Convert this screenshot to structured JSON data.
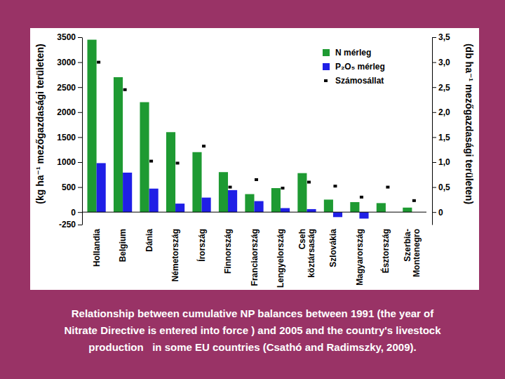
{
  "chart_data": {
    "type": "bar",
    "caption": [
      "Relationship between cumulative NP balances between 1991 (the year of",
      "Nitrate Directive is entered into force ) and 2005 and the country's livestock",
      "production   in some EU countries (Csathó and Radimszky, 2009)."
    ],
    "y_label": "(kg ha⁻¹ mezőgazdasági területen)",
    "y2_label": "(db ha⁻¹ mezőgazdasági területen)",
    "categories": [
      "Hollandia",
      "Belgium",
      "Dánia",
      "Németország",
      "Írország",
      "Finnország",
      "Franciaország",
      "Lengyelország",
      "Cseh köztársaság",
      "Szlovákia",
      "Magyarország",
      "Észtország",
      "Szerbia-Montenegro"
    ],
    "series": [
      {
        "name": "N mérleg",
        "type": "bar",
        "color": "#1e9a32",
        "values": [
          3450,
          2700,
          2200,
          1600,
          1200,
          800,
          360,
          480,
          780,
          250,
          200,
          180,
          90
        ]
      },
      {
        "name": "P₂O₅ mérleg",
        "type": "bar",
        "color": "#1f1fe6",
        "values": [
          980,
          790,
          470,
          170,
          290,
          440,
          220,
          80,
          60,
          -100,
          -130,
          0,
          0
        ]
      },
      {
        "name": "Számosállat",
        "type": "scatter",
        "marker": "square",
        "color": "#000000",
        "axis": "y2",
        "values": [
          3.0,
          2.45,
          1.02,
          0.98,
          1.32,
          0.5,
          0.65,
          0.48,
          0.6,
          0.52,
          0.3,
          0.5,
          0.23
        ]
      }
    ],
    "ylim": [
      -250,
      3500
    ],
    "yticks": [
      -250,
      0,
      500,
      1000,
      1500,
      2000,
      2500,
      3000,
      3500
    ],
    "y2lim": [
      -0.25,
      3.5
    ],
    "y2ticks": [
      0,
      {
        "value": 0.5,
        "label": "0,5"
      },
      {
        "value": 1,
        "label": "1,0"
      },
      {
        "value": 1.5,
        "label": "1,5"
      },
      {
        "value": 2,
        "label": "2,0"
      },
      {
        "value": 2.5,
        "label": "2,5"
      },
      {
        "value": 3,
        "label": "3,0"
      },
      {
        "value": 3.5,
        "label": "3,5"
      }
    ],
    "grid": false,
    "legend": "top-right"
  }
}
